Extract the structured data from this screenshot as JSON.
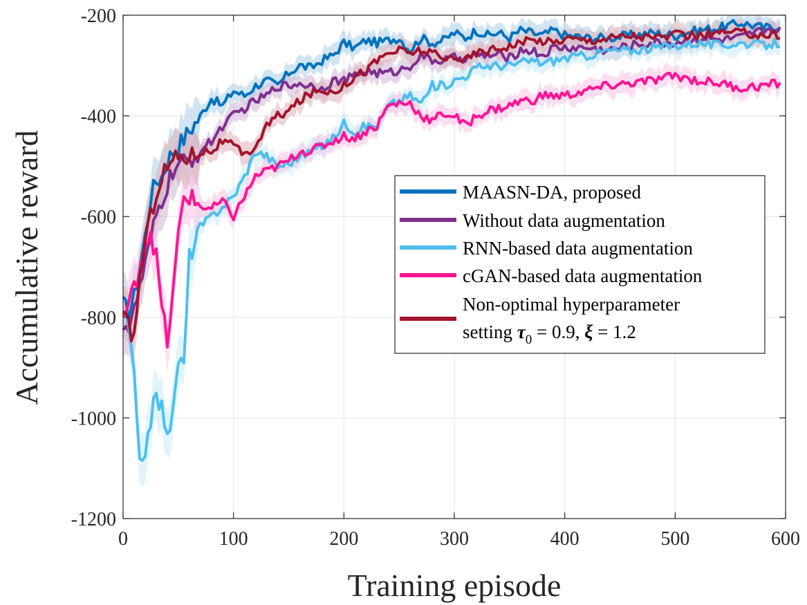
{
  "chart_data": {
    "type": "line",
    "title": "",
    "xlabel": "Training episode",
    "ylabel": "Accumulative reward",
    "xlim": [
      0,
      600
    ],
    "ylim": [
      -1200,
      -200
    ],
    "xticks": [
      0,
      100,
      200,
      300,
      400,
      500,
      600
    ],
    "yticks": [
      -1200,
      -1000,
      -800,
      -600,
      -400,
      -200
    ],
    "xtick_labels": [
      "0",
      "100",
      "200",
      "300",
      "400",
      "500",
      "600"
    ],
    "ytick_labels": [
      "-1200",
      "-1000",
      "-800",
      "-600",
      "-400",
      "-200"
    ],
    "grid": true,
    "legend_position": "center-right",
    "series": [
      {
        "name": "MAASN-DA, proposed",
        "color": "#0072BD",
        "band_color": "#a9cde8",
        "x": [
          0,
          5,
          10,
          15,
          20,
          25,
          30,
          35,
          40,
          45,
          50,
          60,
          70,
          80,
          90,
          100,
          110,
          120,
          130,
          140,
          150,
          160,
          170,
          180,
          190,
          200,
          210,
          220,
          230,
          240,
          250,
          260,
          270,
          280,
          290,
          300,
          310,
          320,
          330,
          340,
          350,
          360,
          370,
          380,
          390,
          400,
          420,
          440,
          460,
          480,
          500,
          520,
          540,
          560,
          580,
          595
        ],
        "values": [
          -775,
          -790,
          -760,
          -700,
          -640,
          -560,
          -530,
          -520,
          -490,
          -470,
          -460,
          -430,
          -400,
          -365,
          -380,
          -350,
          -360,
          -340,
          -330,
          -340,
          -315,
          -300,
          -305,
          -290,
          -280,
          -255,
          -265,
          -250,
          -255,
          -250,
          -245,
          -270,
          -245,
          -255,
          -250,
          -235,
          -245,
          -230,
          -240,
          -235,
          -245,
          -230,
          -235,
          -240,
          -230,
          -240,
          -245,
          -245,
          -240,
          -235,
          -240,
          -230,
          -225,
          -215,
          -225,
          -222
        ]
      },
      {
        "name": "Without data augmentation",
        "color": "#7E2F8E",
        "band_color": "#cfb6d6",
        "x": [
          0,
          5,
          10,
          15,
          20,
          25,
          30,
          35,
          40,
          45,
          50,
          60,
          70,
          80,
          90,
          100,
          110,
          120,
          130,
          140,
          150,
          160,
          170,
          180,
          190,
          200,
          210,
          220,
          230,
          240,
          250,
          260,
          270,
          280,
          290,
          300,
          310,
          320,
          330,
          340,
          350,
          360,
          370,
          380,
          390,
          400,
          420,
          440,
          460,
          480,
          500,
          520,
          540,
          560,
          580,
          595
        ],
        "values": [
          -810,
          -820,
          -790,
          -740,
          -700,
          -650,
          -600,
          -570,
          -540,
          -510,
          -500,
          -490,
          -470,
          -450,
          -420,
          -400,
          -385,
          -370,
          -360,
          -340,
          -340,
          -335,
          -340,
          -345,
          -330,
          -330,
          -320,
          -310,
          -315,
          -315,
          -310,
          -300,
          -280,
          -290,
          -290,
          -285,
          -285,
          -280,
          -280,
          -280,
          -285,
          -270,
          -270,
          -280,
          -265,
          -265,
          -265,
          -270,
          -260,
          -255,
          -255,
          -245,
          -250,
          -245,
          -230,
          -225
        ]
      },
      {
        "name": "RNN-based data augmentation",
        "color": "#4DBEEE",
        "band_color": "#c9ebfa",
        "x": [
          0,
          5,
          10,
          15,
          20,
          25,
          30,
          35,
          40,
          45,
          50,
          55,
          60,
          70,
          80,
          90,
          100,
          110,
          120,
          130,
          140,
          150,
          160,
          170,
          180,
          190,
          200,
          210,
          220,
          230,
          240,
          250,
          260,
          270,
          280,
          290,
          300,
          310,
          320,
          330,
          340,
          350,
          360,
          370,
          380,
          390,
          400,
          420,
          440,
          460,
          480,
          500,
          520,
          540,
          560,
          580,
          595
        ],
        "values": [
          -790,
          -820,
          -920,
          -1100,
          -1060,
          -1000,
          -960,
          -980,
          -1020,
          -1000,
          -880,
          -900,
          -680,
          -620,
          -600,
          -580,
          -560,
          -520,
          -470,
          -480,
          -500,
          -495,
          -480,
          -470,
          -460,
          -445,
          -415,
          -430,
          -420,
          -420,
          -380,
          -370,
          -360,
          -375,
          -340,
          -340,
          -330,
          -320,
          -305,
          -300,
          -300,
          -300,
          -295,
          -290,
          -295,
          -290,
          -285,
          -280,
          -270,
          -270,
          -265,
          -260,
          -255,
          -260,
          -255,
          -260,
          -255
        ]
      },
      {
        "name": "cGAN-based data augmentation",
        "color": "#FF1493",
        "band_color": "#fbc3e4",
        "x": [
          0,
          5,
          10,
          15,
          20,
          25,
          30,
          35,
          40,
          45,
          50,
          55,
          60,
          70,
          80,
          90,
          100,
          110,
          120,
          130,
          140,
          150,
          160,
          170,
          180,
          190,
          200,
          210,
          220,
          230,
          240,
          250,
          260,
          270,
          280,
          290,
          300,
          310,
          320,
          330,
          340,
          350,
          360,
          370,
          380,
          390,
          400,
          420,
          440,
          460,
          480,
          500,
          520,
          540,
          560,
          580,
          595
        ],
        "values": [
          -800,
          -780,
          -740,
          -700,
          -650,
          -630,
          -680,
          -780,
          -850,
          -760,
          -640,
          -560,
          -560,
          -580,
          -585,
          -570,
          -600,
          -560,
          -520,
          -510,
          -500,
          -490,
          -470,
          -470,
          -460,
          -450,
          -440,
          -445,
          -430,
          -420,
          -380,
          -375,
          -375,
          -400,
          -410,
          -395,
          -400,
          -420,
          -400,
          -390,
          -385,
          -380,
          -370,
          -370,
          -360,
          -360,
          -360,
          -350,
          -340,
          -335,
          -330,
          -320,
          -330,
          -335,
          -345,
          -340,
          -335
        ]
      },
      {
        "name": "Non-optimal hyperparameter setting τ0 = 0.9, ξ = 1.2",
        "color": "#A2142F",
        "band_color": "#ddb0b8",
        "x": [
          0,
          5,
          10,
          15,
          20,
          25,
          30,
          35,
          40,
          45,
          50,
          60,
          70,
          80,
          90,
          100,
          110,
          120,
          130,
          140,
          150,
          160,
          170,
          180,
          190,
          200,
          210,
          220,
          230,
          240,
          250,
          260,
          270,
          280,
          290,
          300,
          310,
          320,
          330,
          340,
          350,
          360,
          370,
          380,
          390,
          400,
          420,
          440,
          460,
          480,
          500,
          520,
          540,
          560,
          580,
          595
        ],
        "values": [
          -800,
          -820,
          -840,
          -720,
          -650,
          -600,
          -550,
          -520,
          -500,
          -490,
          -480,
          -480,
          -470,
          -470,
          -450,
          -460,
          -480,
          -460,
          -420,
          -400,
          -390,
          -370,
          -355,
          -350,
          -350,
          -340,
          -320,
          -310,
          -290,
          -275,
          -270,
          -275,
          -270,
          -275,
          -290,
          -280,
          -290,
          -275,
          -270,
          -265,
          -260,
          -255,
          -250,
          -250,
          -255,
          -245,
          -250,
          -245,
          -240,
          -245,
          -240,
          -240,
          -235,
          -235,
          -240,
          -238
        ]
      }
    ]
  },
  "legend": {
    "items": [
      {
        "label": "MAASN-DA, proposed",
        "color": "#0072BD"
      },
      {
        "label": "Without data augmentation",
        "color": "#7E2F8E"
      },
      {
        "label": "RNN-based data augmentation",
        "color": "#4DBEEE"
      },
      {
        "label": "cGAN-based data augmentation",
        "color": "#FF1493"
      },
      {
        "label": "Non-optimal hyperparameter",
        "color": "#A2142F"
      }
    ],
    "last_line2_prefix": "setting ",
    "tau_symbol": "τ",
    "tau_subscript": "0",
    "tau_value": " = 0.9, ",
    "xi_symbol": "ξ",
    "xi_value": " = 1.2"
  }
}
